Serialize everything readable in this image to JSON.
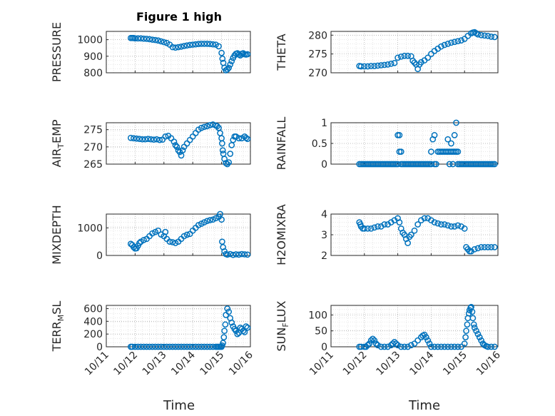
{
  "figure": {
    "title": "Figure 1 high",
    "marker_color": "#0072BD"
  },
  "chart_data": [
    {
      "type": "scatter",
      "ylabel": "PRESSURE",
      "ylim": [
        800,
        1050
      ],
      "yticks": [
        800,
        900,
        1000
      ],
      "ytick_labels": [
        "800",
        "900",
        "1000"
      ],
      "x": [
        11.85,
        11.9,
        11.95,
        12.0,
        12.1,
        12.2,
        12.3,
        12.4,
        12.5,
        12.6,
        12.7,
        12.8,
        12.9,
        13.0,
        13.1,
        13.2,
        13.3,
        13.4,
        13.5,
        13.6,
        13.7,
        13.8,
        13.9,
        14.0,
        14.1,
        14.2,
        14.3,
        14.4,
        14.5,
        14.6,
        14.7,
        14.8,
        14.9,
        15.0,
        15.03,
        15.06,
        15.1,
        15.15,
        15.2,
        15.25,
        15.3,
        15.35,
        15.4,
        15.45,
        15.5,
        15.55,
        15.6,
        15.65,
        15.7,
        15.75,
        15.8,
        15.85,
        15.9
      ],
      "y": [
        1010,
        1010,
        1010,
        1008,
        1008,
        1008,
        1006,
        1005,
        1003,
        1000,
        998,
        995,
        990,
        985,
        980,
        970,
        955,
        952,
        955,
        958,
        962,
        965,
        968,
        970,
        972,
        974,
        975,
        975,
        975,
        974,
        972,
        970,
        960,
        920,
        885,
        860,
        830,
        815,
        820,
        830,
        850,
        870,
        890,
        905,
        915,
        918,
        910,
        905,
        915,
        918,
        912,
        910,
        912
      ]
    },
    {
      "type": "scatter",
      "ylabel": "THETA",
      "ylim": [
        270,
        281
      ],
      "yticks": [
        270,
        275,
        280
      ],
      "ytick_labels": [
        "270",
        "275",
        "280"
      ],
      "x": [
        11.85,
        11.9,
        12.0,
        12.1,
        12.2,
        12.3,
        12.4,
        12.5,
        12.6,
        12.7,
        12.8,
        12.9,
        13.0,
        13.1,
        13.2,
        13.3,
        13.4,
        13.45,
        13.5,
        13.55,
        13.6,
        13.65,
        13.7,
        13.8,
        13.9,
        14.0,
        14.1,
        14.2,
        14.3,
        14.4,
        14.5,
        14.6,
        14.7,
        14.8,
        14.9,
        15.0,
        15.1,
        15.2,
        15.25,
        15.3,
        15.35,
        15.4,
        15.5,
        15.6,
        15.7,
        15.8,
        15.9
      ],
      "y": [
        271.8,
        271.7,
        271.7,
        271.7,
        271.8,
        271.8,
        271.9,
        272.0,
        272.1,
        272.2,
        272.4,
        272.6,
        274.0,
        274.3,
        274.5,
        274.5,
        274.4,
        273.2,
        272.7,
        272.2,
        271.0,
        272.2,
        272.8,
        273.3,
        274.0,
        275.0,
        275.8,
        276.4,
        277.0,
        277.4,
        277.7,
        278.0,
        278.2,
        278.4,
        278.6,
        279.0,
        279.8,
        280.5,
        280.7,
        280.8,
        280.5,
        280.2,
        280.0,
        279.9,
        279.8,
        279.6,
        279.5
      ]
    },
    {
      "type": "scatter",
      "ylabel": "AIR_TEMP",
      "ylim": [
        265,
        277
      ],
      "yticks": [
        265,
        270,
        275
      ],
      "ytick_labels": [
        "265",
        "270",
        "275"
      ],
      "x": [
        11.85,
        11.95,
        12.05,
        12.15,
        12.25,
        12.35,
        12.45,
        12.55,
        12.65,
        12.75,
        12.85,
        12.95,
        13.05,
        13.15,
        13.25,
        13.35,
        13.4,
        13.45,
        13.5,
        13.55,
        13.6,
        13.65,
        13.7,
        13.8,
        13.9,
        14.0,
        14.1,
        14.2,
        14.3,
        14.4,
        14.5,
        14.6,
        14.7,
        14.8,
        14.85,
        14.9,
        14.95,
        15.0,
        15.02,
        15.04,
        15.06,
        15.1,
        15.15,
        15.2,
        15.25,
        15.3,
        15.35,
        15.4,
        15.45,
        15.5,
        15.6,
        15.7,
        15.8,
        15.85,
        15.9
      ],
      "y": [
        272.6,
        272.5,
        272.4,
        272.3,
        272.2,
        272.2,
        272.3,
        272.2,
        272.1,
        272.2,
        272.0,
        272.1,
        273.0,
        273.2,
        272.5,
        271.5,
        270.5,
        270.0,
        269.0,
        268.5,
        267.5,
        269.0,
        270.0,
        271.0,
        272.0,
        273.0,
        274.0,
        275.0,
        275.5,
        275.8,
        276.0,
        276.3,
        276.5,
        276.2,
        276.0,
        275.5,
        274.0,
        272.5,
        271.0,
        269.0,
        268.0,
        266.5,
        265.3,
        265.0,
        265.5,
        268.0,
        270.5,
        272.0,
        273.0,
        273.0,
        272.5,
        272.5,
        273.0,
        272.6,
        272.3
      ]
    },
    {
      "type": "scatter",
      "ylabel": "RAINFALL",
      "ylim": [
        0,
        1
      ],
      "yticks": [
        0,
        0.5,
        1
      ],
      "ytick_labels": [
        "0",
        "0.5",
        "1"
      ],
      "x": [
        11.85,
        11.9,
        11.95,
        12.0,
        12.05,
        12.1,
        12.15,
        12.2,
        12.25,
        12.3,
        12.35,
        12.4,
        12.45,
        12.5,
        12.55,
        12.6,
        12.65,
        12.7,
        12.75,
        12.8,
        12.85,
        12.9,
        12.95,
        13.0,
        13.0,
        13.05,
        13.05,
        13.1,
        13.1,
        13.15,
        13.2,
        13.25,
        13.3,
        13.35,
        13.4,
        13.45,
        13.5,
        13.55,
        13.6,
        13.65,
        13.7,
        13.75,
        13.8,
        13.85,
        13.9,
        13.95,
        14.0,
        14.0,
        14.05,
        14.1,
        14.1,
        14.15,
        14.2,
        14.25,
        14.3,
        14.35,
        14.4,
        14.45,
        14.5,
        14.5,
        14.55,
        14.55,
        14.6,
        14.6,
        14.65,
        14.65,
        14.7,
        14.7,
        14.75,
        14.75,
        14.8,
        14.8,
        14.85,
        14.9,
        14.95,
        15.0,
        15.05,
        15.1,
        15.15,
        15.2,
        15.25,
        15.3,
        15.35,
        15.4,
        15.45,
        15.5,
        15.55,
        15.6,
        15.65,
        15.7,
        15.75,
        15.8,
        15.85,
        15.9
      ],
      "y": [
        0,
        0,
        0,
        0,
        0,
        0,
        0,
        0,
        0,
        0,
        0,
        0,
        0,
        0,
        0,
        0,
        0,
        0,
        0,
        0,
        0,
        0,
        0,
        0.7,
        0,
        0.7,
        0.3,
        0.3,
        0,
        0,
        0,
        0,
        0,
        0,
        0,
        0,
        0,
        0,
        0,
        0,
        0,
        0,
        0,
        0,
        0,
        0,
        0.3,
        0,
        0.6,
        0.7,
        0,
        0,
        0.3,
        0.3,
        0.3,
        0.3,
        0.3,
        0.3,
        0.3,
        0.6,
        0.3,
        0,
        0.5,
        0.3,
        0.3,
        0,
        0.7,
        0.3,
        1.0,
        0.3,
        0.3,
        0,
        0,
        0,
        0,
        0,
        0,
        0,
        0,
        0,
        0,
        0,
        0,
        0,
        0,
        0,
        0,
        0,
        0,
        0,
        0,
        0,
        0,
        0
      ]
    },
    {
      "type": "scatter",
      "ylabel": "MIXDEPTH",
      "ylim": [
        0,
        1500
      ],
      "yticks": [
        0,
        1000
      ],
      "ytick_labels": [
        "0",
        "1000"
      ],
      "x": [
        11.85,
        11.9,
        11.95,
        12.0,
        12.05,
        12.1,
        12.15,
        12.2,
        12.3,
        12.4,
        12.5,
        12.6,
        12.7,
        12.8,
        12.9,
        13.0,
        13.05,
        13.1,
        13.2,
        13.3,
        13.4,
        13.5,
        13.6,
        13.7,
        13.8,
        13.9,
        14.0,
        14.1,
        14.2,
        14.3,
        14.4,
        14.5,
        14.6,
        14.7,
        14.8,
        14.9,
        14.95,
        15.0,
        15.02,
        15.05,
        15.1,
        15.15,
        15.2,
        15.3,
        15.4,
        15.5,
        15.6,
        15.7,
        15.8,
        15.9
      ],
      "y": [
        420,
        380,
        300,
        250,
        260,
        350,
        450,
        500,
        560,
        600,
        700,
        800,
        850,
        900,
        760,
        700,
        850,
        600,
        500,
        480,
        450,
        500,
        600,
        700,
        750,
        780,
        900,
        1000,
        1100,
        1150,
        1200,
        1250,
        1280,
        1300,
        1350,
        1400,
        1500,
        1300,
        500,
        300,
        150,
        50,
        30,
        50,
        20,
        40,
        30,
        50,
        40,
        30
      ]
    },
    {
      "type": "scatter",
      "ylabel": "H2OMIXRA",
      "ylim": [
        2,
        4
      ],
      "yticks": [
        2,
        3,
        4
      ],
      "ytick_labels": [
        "2",
        "3",
        "4"
      ],
      "x": [
        11.85,
        11.88,
        11.9,
        11.95,
        12.0,
        12.1,
        12.2,
        12.3,
        12.4,
        12.5,
        12.6,
        12.7,
        12.8,
        12.9,
        13.0,
        13.05,
        13.1,
        13.15,
        13.2,
        13.25,
        13.3,
        13.35,
        13.4,
        13.5,
        13.6,
        13.7,
        13.8,
        13.9,
        14.0,
        14.1,
        14.2,
        14.3,
        14.4,
        14.5,
        14.6,
        14.7,
        14.8,
        14.9,
        15.0,
        15.05,
        15.1,
        15.15,
        15.2,
        15.3,
        15.4,
        15.5,
        15.6,
        15.7,
        15.8,
        15.9
      ],
      "y": [
        3.6,
        3.5,
        3.4,
        3.3,
        3.3,
        3.3,
        3.3,
        3.35,
        3.4,
        3.4,
        3.5,
        3.5,
        3.6,
        3.7,
        3.8,
        3.6,
        3.3,
        3.1,
        3.0,
        2.8,
        2.6,
        2.9,
        3.0,
        3.2,
        3.5,
        3.7,
        3.8,
        3.8,
        3.7,
        3.6,
        3.55,
        3.5,
        3.5,
        3.45,
        3.4,
        3.4,
        3.45,
        3.4,
        3.3,
        2.4,
        2.3,
        2.2,
        2.2,
        2.3,
        2.35,
        2.4,
        2.4,
        2.4,
        2.4,
        2.4
      ]
    },
    {
      "type": "scatter",
      "ylabel": "TERR_MSL",
      "ylim": [
        0,
        650
      ],
      "yticks": [
        0,
        200,
        400,
        600
      ],
      "ytick_labels": [
        "0",
        "200",
        "400",
        "600"
      ],
      "x": [
        11.85,
        11.9,
        12.0,
        12.1,
        12.2,
        12.3,
        12.4,
        12.5,
        12.6,
        12.7,
        12.8,
        12.9,
        13.0,
        13.1,
        13.2,
        13.3,
        13.4,
        13.5,
        13.6,
        13.7,
        13.8,
        13.9,
        14.0,
        14.1,
        14.2,
        14.3,
        14.4,
        14.5,
        14.6,
        14.7,
        14.8,
        14.85,
        14.9,
        14.95,
        15.0,
        15.02,
        15.05,
        15.08,
        15.1,
        15.13,
        15.15,
        15.2,
        15.25,
        15.3,
        15.35,
        15.4,
        15.45,
        15.5,
        15.55,
        15.6,
        15.65,
        15.7,
        15.75,
        15.8,
        15.85,
        15.9
      ],
      "y": [
        0,
        0,
        0,
        0,
        0,
        0,
        0,
        0,
        0,
        0,
        0,
        0,
        0,
        0,
        0,
        0,
        0,
        0,
        0,
        0,
        0,
        0,
        0,
        0,
        0,
        0,
        0,
        0,
        0,
        0,
        0,
        0,
        0,
        0,
        0,
        20,
        60,
        150,
        250,
        350,
        500,
        600,
        550,
        450,
        380,
        320,
        280,
        250,
        200,
        220,
        300,
        280,
        250,
        230,
        320,
        300
      ]
    },
    {
      "type": "scatter",
      "ylabel": "SUN_FLUX",
      "ylim": [
        0,
        130
      ],
      "yticks": [
        0,
        50,
        100
      ],
      "ytick_labels": [
        "0",
        "50",
        "100"
      ],
      "x": [
        11.85,
        11.9,
        12.0,
        12.05,
        12.1,
        12.15,
        12.2,
        12.25,
        12.3,
        12.35,
        12.4,
        12.5,
        12.6,
        12.7,
        12.8,
        12.85,
        12.9,
        12.95,
        13.0,
        13.1,
        13.2,
        13.3,
        13.4,
        13.5,
        13.6,
        13.7,
        13.75,
        13.8,
        13.85,
        13.9,
        13.95,
        14.0,
        14.1,
        14.2,
        14.3,
        14.4,
        14.5,
        14.6,
        14.7,
        14.8,
        14.9,
        15.0,
        15.03,
        15.05,
        15.08,
        15.1,
        15.13,
        15.15,
        15.18,
        15.2,
        15.23,
        15.25,
        15.28,
        15.3,
        15.35,
        15.4,
        15.45,
        15.5,
        15.55,
        15.6,
        15.65,
        15.7,
        15.8,
        15.9
      ],
      "y": [
        0,
        0,
        0,
        0,
        5,
        10,
        20,
        25,
        20,
        10,
        5,
        0,
        0,
        0,
        5,
        10,
        15,
        10,
        5,
        0,
        0,
        0,
        5,
        10,
        20,
        30,
        35,
        38,
        30,
        20,
        10,
        0,
        0,
        0,
        0,
        0,
        0,
        0,
        0,
        0,
        0,
        10,
        30,
        50,
        70,
        90,
        105,
        115,
        122,
        125,
        110,
        90,
        70,
        60,
        50,
        40,
        30,
        20,
        10,
        5,
        2,
        0,
        0,
        0
      ]
    }
  ],
  "axes": [
    {
      "ylabel_main": "PRESSURE",
      "ylabel_sub": "",
      "ylabel_tail": ""
    },
    {
      "ylabel_main": "THETA",
      "ylabel_sub": "",
      "ylabel_tail": ""
    },
    {
      "ylabel_main": "AIR",
      "ylabel_sub": "T",
      "ylabel_tail": "EMP"
    },
    {
      "ylabel_main": "RAINFALL",
      "ylabel_sub": "",
      "ylabel_tail": ""
    },
    {
      "ylabel_main": "MIXDEPTH",
      "ylabel_sub": "",
      "ylabel_tail": ""
    },
    {
      "ylabel_main": "H2OMIXRA",
      "ylabel_sub": "",
      "ylabel_tail": ""
    },
    {
      "ylabel_main": "TERR",
      "ylabel_sub": "M",
      "ylabel_tail": "SL"
    },
    {
      "ylabel_main": "SUN",
      "ylabel_sub": "F",
      "ylabel_tail": "LUX"
    }
  ],
  "xaxis": {
    "xlim": [
      11,
      16
    ],
    "ticks": [
      11,
      12,
      13,
      14,
      15,
      16
    ],
    "tick_labels": [
      "10/11",
      "10/12",
      "10/13",
      "10/14",
      "10/15",
      "10/16"
    ],
    "xlabel": "Time"
  }
}
